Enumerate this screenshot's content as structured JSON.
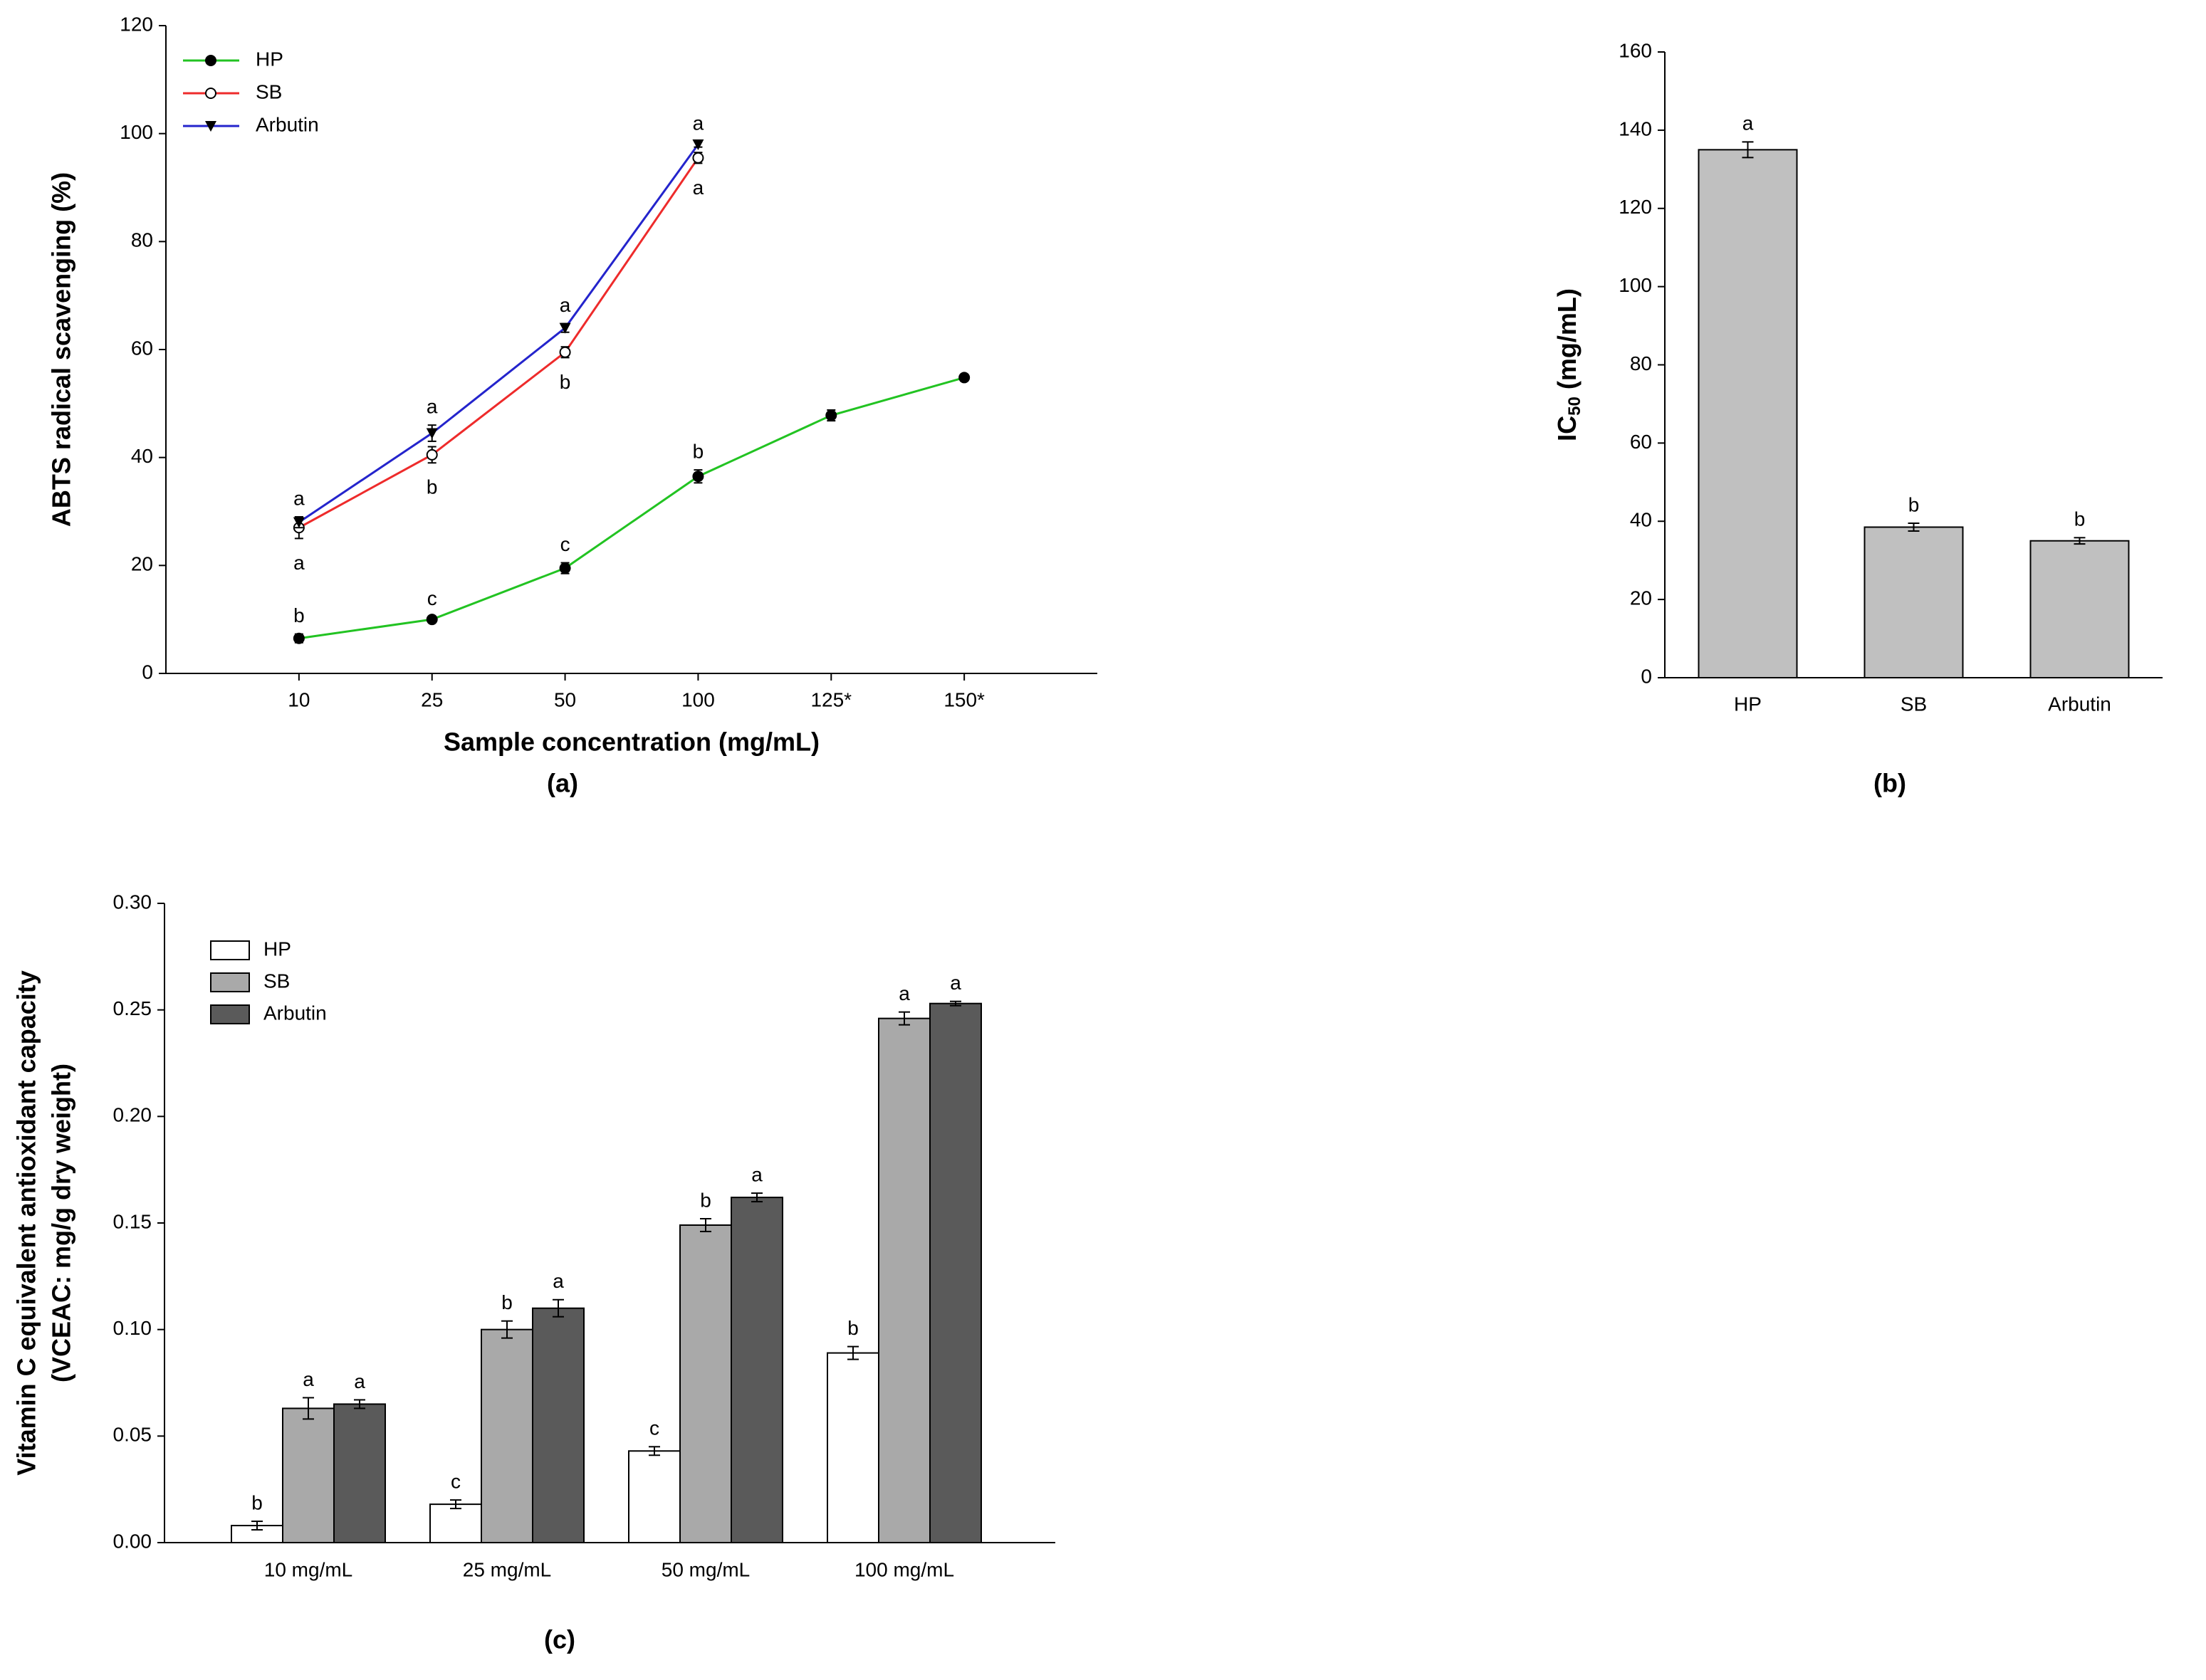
{
  "chart_data": [
    {
      "type": "line",
      "panel_label": "(a)",
      "y_label": "ABTS radical scavenging (%)",
      "x_label": "Sample concentration (mg/mL)",
      "categories": [
        "10",
        "25",
        "50",
        "100",
        "125*",
        "150*"
      ],
      "ylim": [
        0,
        120
      ],
      "yticks": [
        0,
        20,
        40,
        60,
        80,
        100,
        120
      ],
      "series": [
        {
          "name": "HP",
          "color": "#22c322",
          "marker": "circle-filled",
          "values": [
            6.5,
            10,
            19.5,
            36.5,
            47.8,
            54.8
          ],
          "errors": [
            0.8,
            0.5,
            1.0,
            1.2,
            1.0,
            0.6
          ],
          "letters": [
            "b",
            "c",
            "c",
            "b",
            null,
            null
          ]
        },
        {
          "name": "SB",
          "color": "#ee2b2b",
          "marker": "circle-open",
          "values": [
            27,
            40.5,
            59.5,
            95.5,
            null,
            null
          ],
          "errors": [
            2.0,
            1.5,
            1.0,
            1.0,
            null,
            null
          ],
          "letters": [
            "a",
            "b",
            "b",
            "a",
            null,
            null
          ]
        },
        {
          "name": "Arbutin",
          "color": "#2424cc",
          "marker": "triangle-down",
          "values": [
            28,
            44.5,
            64,
            98,
            null,
            null
          ],
          "errors": [
            1.0,
            1.5,
            0.8,
            0.5,
            null,
            null
          ],
          "letters": [
            "a",
            "a",
            "a",
            "a",
            null,
            null
          ]
        }
      ]
    },
    {
      "type": "bar",
      "panel_label": "(b)",
      "y_label": {
        "text": "IC",
        "subscript": "50",
        "suffix": " (mg/mL)"
      },
      "categories": [
        "HP",
        "SB",
        "Arbutin"
      ],
      "color": "#c0c0c0",
      "values": [
        135,
        38.5,
        35
      ],
      "errors": [
        2.0,
        1.0,
        0.8
      ],
      "letters": [
        "a",
        "b",
        "b"
      ],
      "ylim": [
        0,
        160
      ],
      "yticks": [
        0,
        20,
        40,
        60,
        80,
        100,
        120,
        140,
        160
      ]
    },
    {
      "type": "grouped-bar",
      "panel_label": "(c)",
      "y_label": [
        "Vitamin C equivalent antioxidant capacity",
        "(VCEAC: mg/g dry weight)"
      ],
      "categories": [
        "10 mg/mL",
        "25 mg/mL",
        "50 mg/mL",
        "100 mg/mL"
      ],
      "ylim": [
        0,
        0.3
      ],
      "yticks": [
        {
          "value": 0,
          "label": "0.00"
        },
        {
          "value": 0.05,
          "label": "0.05"
        },
        {
          "value": 0.1,
          "label": "0.10"
        },
        {
          "value": 0.15,
          "label": "0.15"
        },
        {
          "value": 0.2,
          "label": "0.20"
        },
        {
          "value": 0.25,
          "label": "0.25"
        },
        {
          "value": 0.3,
          "label": "0.30"
        }
      ],
      "series": [
        {
          "name": "HP",
          "color": "#ffffff",
          "values": [
            0.008,
            0.018,
            0.043,
            0.089
          ],
          "errors": [
            0.002,
            0.002,
            0.002,
            0.003
          ],
          "letters": [
            "b",
            "c",
            "c",
            "b"
          ]
        },
        {
          "name": "SB",
          "color": "#a9a9a9",
          "values": [
            0.063,
            0.1,
            0.149,
            0.246
          ],
          "errors": [
            0.005,
            0.004,
            0.003,
            0.003
          ],
          "letters": [
            "a",
            "b",
            "b",
            "a"
          ]
        },
        {
          "name": "Arbutin",
          "color": "#5a5a5a",
          "values": [
            0.065,
            0.11,
            0.162,
            0.253
          ],
          "errors": [
            0.002,
            0.004,
            0.002,
            0.001
          ],
          "letters": [
            "a",
            "a",
            "a",
            "a"
          ]
        }
      ]
    }
  ]
}
